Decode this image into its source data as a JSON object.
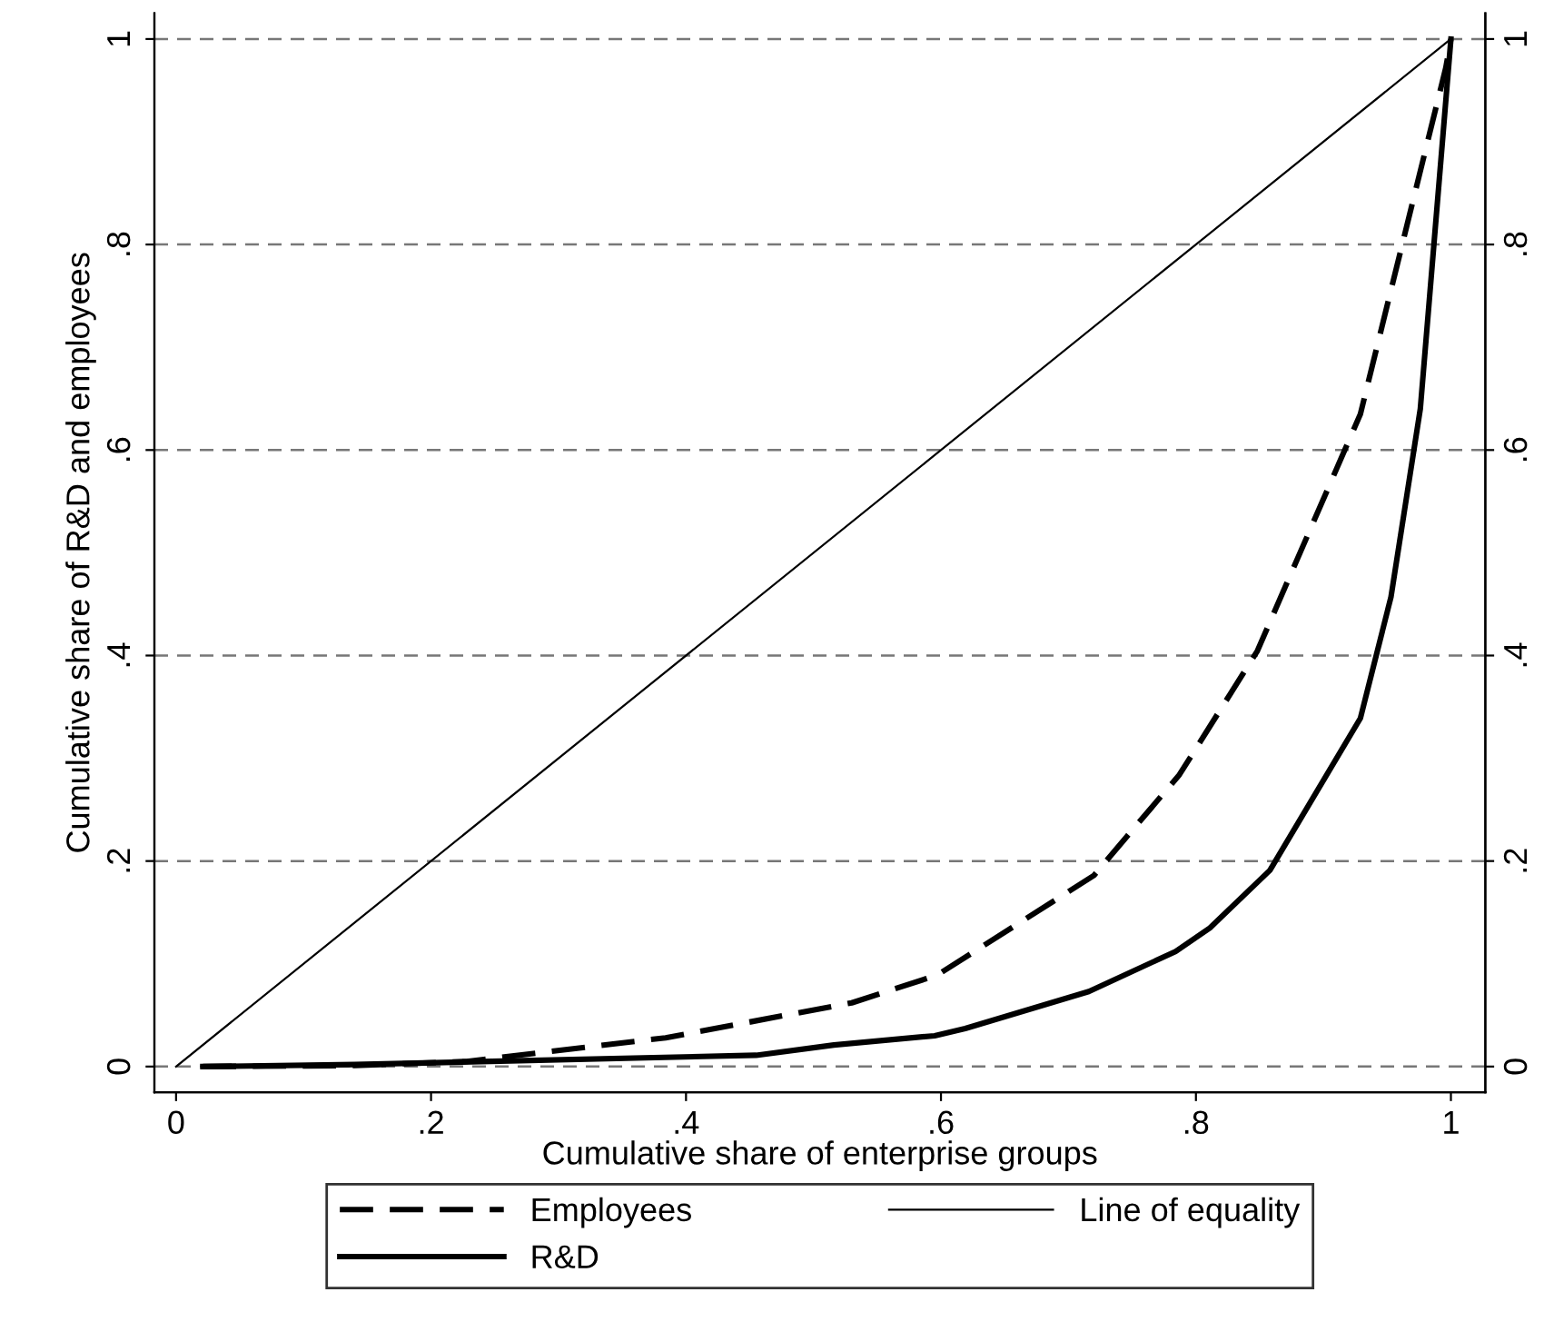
{
  "chart_data": {
    "type": "line",
    "xlabel": "Cumulative share of enterprise groups",
    "ylabel": "Cumulative share of R&D and employees",
    "series": [
      {
        "name": "Employees",
        "color": "#000000",
        "line_style": "dashed",
        "x": [
          0.021,
          0.14,
          0.228,
          0.384,
          0.53,
          0.597,
          0.72,
          0.787,
          0.848,
          0.929,
          0.996,
          1
        ],
        "values": [
          0,
          0.001,
          0.005,
          0.028,
          0.062,
          0.089,
          0.186,
          0.284,
          0.404,
          0.635,
          0.972,
          1
        ]
      },
      {
        "name": "R&D",
        "color": "#000000",
        "line_style": "solid",
        "x": [
          0.021,
          0.14,
          0.455,
          0.516,
          0.595,
          0.619,
          0.716,
          0.784,
          0.811,
          0.858,
          0.929,
          0.953,
          0.976,
          1
        ],
        "values": [
          0,
          0.002,
          0.011,
          0.021,
          0.03,
          0.037,
          0.073,
          0.112,
          0.135,
          0.191,
          0.339,
          0.457,
          0.64,
          1
        ]
      },
      {
        "name": "Line of equality",
        "color": "#000000",
        "line_style": "solid",
        "x": [
          0,
          1
        ],
        "values": [
          0,
          1
        ]
      }
    ],
    "xlim": [
      -0.017,
      1.027
    ],
    "ylim": [
      -0.025,
      1.025
    ],
    "y2lim": [
      -0.025,
      1.025
    ],
    "xticks": [
      0,
      {
        "value": 0.2,
        "label": ".2"
      },
      {
        "value": 0.4,
        "label": ".4"
      },
      {
        "value": 0.6,
        "label": ".6"
      },
      {
        "value": 0.8,
        "label": ".8"
      },
      1
    ],
    "yticks": [
      0,
      {
        "value": 0.2,
        "label": ".2"
      },
      {
        "value": 0.4,
        "label": ".4"
      },
      {
        "value": 0.6,
        "label": ".6"
      },
      {
        "value": 0.8,
        "label": ".8"
      },
      1
    ],
    "y2ticks": [
      0,
      {
        "value": 0.2,
        "label": ".2"
      },
      {
        "value": 0.4,
        "label": ".4"
      },
      {
        "value": 0.6,
        "label": ".6"
      },
      {
        "value": 0.8,
        "label": ".8"
      },
      1
    ],
    "grid": "y",
    "legend": "bottom"
  }
}
